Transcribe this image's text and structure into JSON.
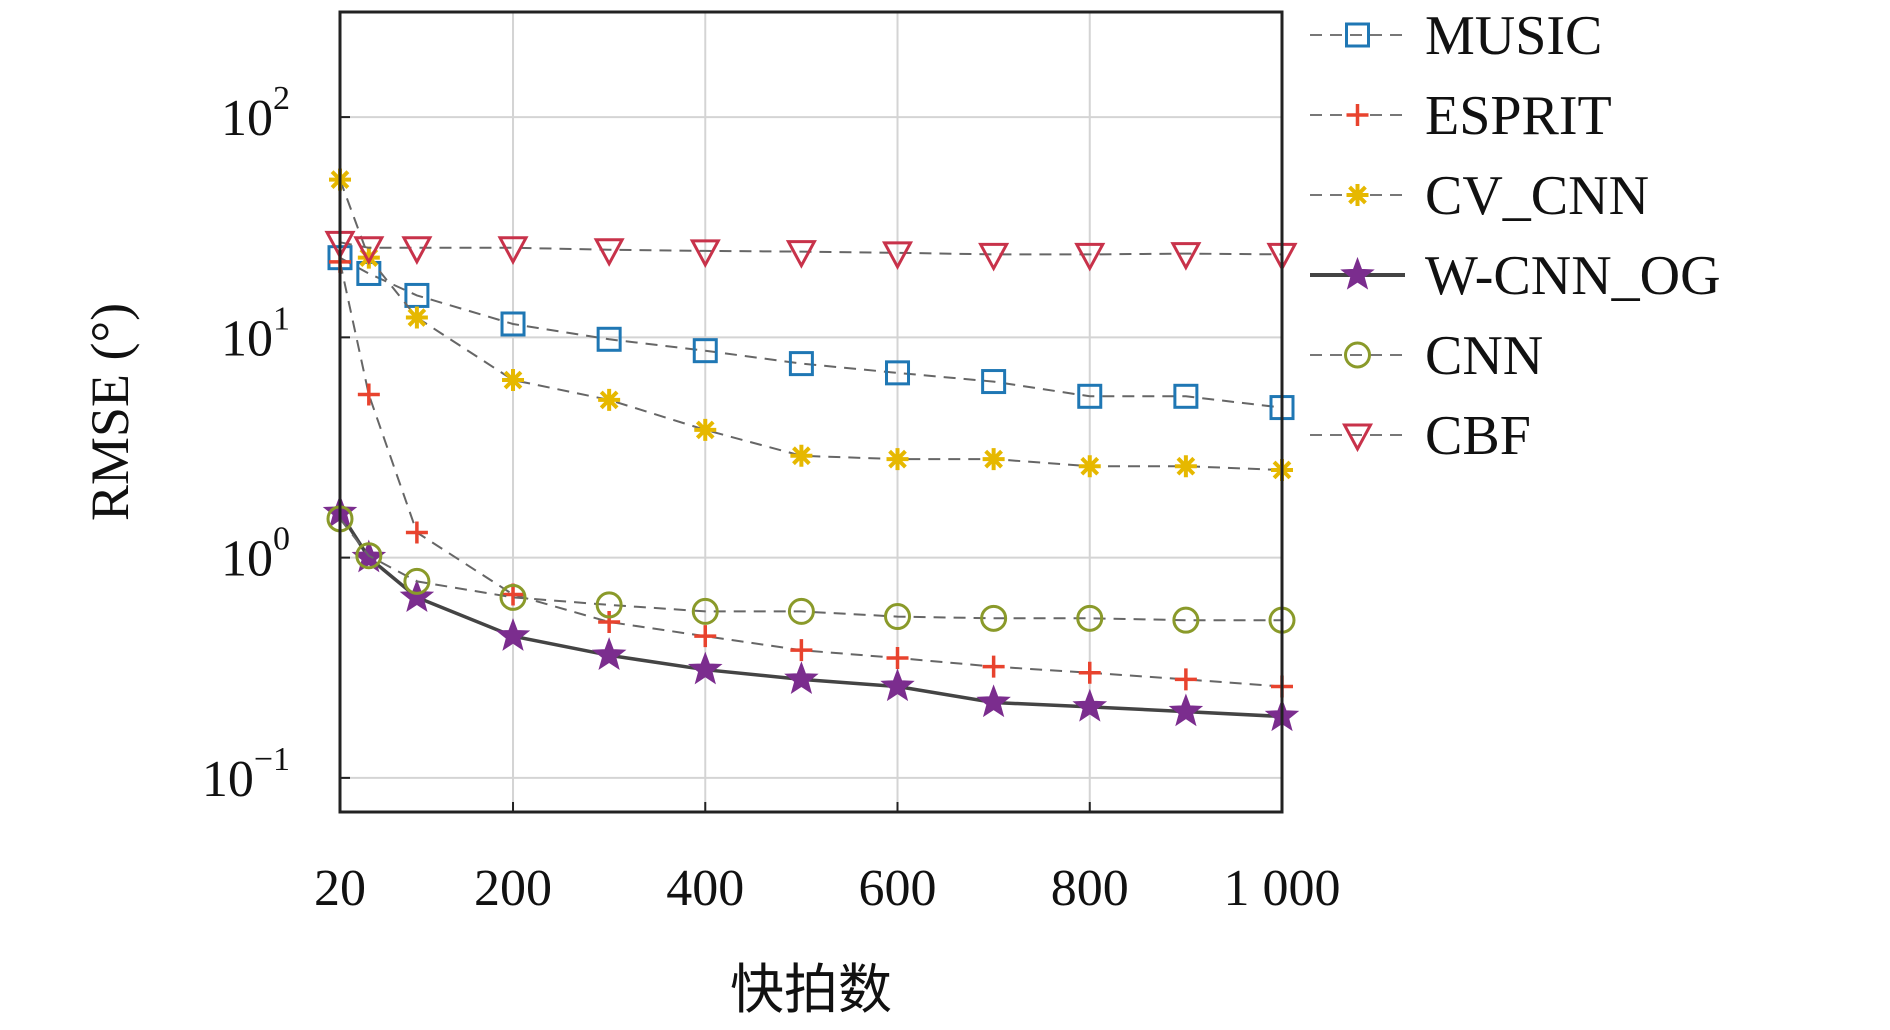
{
  "chart_data": {
    "type": "line",
    "title": "",
    "xlabel": "快拍数",
    "ylabel": "RMSE (°)",
    "x_scale": "linear",
    "y_scale": "log",
    "xlim": [
      20,
      1000
    ],
    "ylim": [
      0.07,
      300
    ],
    "grid": true,
    "legend_position": "outside-right-top",
    "x_ticks": [
      {
        "value": 20,
        "label": "20"
      },
      {
        "value": 200,
        "label": "200"
      },
      {
        "value": 400,
        "label": "400"
      },
      {
        "value": 600,
        "label": "600"
      },
      {
        "value": 800,
        "label": "800"
      },
      {
        "value": 1000,
        "label": "1 000"
      }
    ],
    "y_ticks": [
      {
        "value": 0.1,
        "base": "10",
        "exp": "−1"
      },
      {
        "value": 1,
        "base": "10",
        "exp": "0"
      },
      {
        "value": 10,
        "base": "10",
        "exp": "1"
      },
      {
        "value": 100,
        "base": "10",
        "exp": "2"
      }
    ],
    "x": [
      20,
      50,
      100,
      200,
      300,
      400,
      500,
      600,
      700,
      800,
      900,
      1000
    ],
    "series": [
      {
        "name": "MUSIC",
        "color": "#1f77b4",
        "marker": "square",
        "line": "dashed",
        "values": [
          23,
          19.5,
          15.5,
          11.5,
          9.8,
          8.7,
          7.6,
          6.9,
          6.3,
          5.4,
          5.4,
          4.8
        ]
      },
      {
        "name": "ESPRIT",
        "color": "#e8432e",
        "marker": "plus",
        "line": "dashed",
        "values": [
          22,
          5.5,
          1.3,
          0.68,
          0.51,
          0.44,
          0.38,
          0.35,
          0.32,
          0.3,
          0.28,
          0.26
        ]
      },
      {
        "name": "CV_CNN",
        "color": "#e6b800",
        "marker": "asterisk",
        "line": "dashed",
        "values": [
          52,
          23,
          12.3,
          6.4,
          5.2,
          3.8,
          2.9,
          2.8,
          2.8,
          2.6,
          2.6,
          2.5
        ]
      },
      {
        "name": "W-CNN_OG",
        "color": "#7b2d8e",
        "marker": "star",
        "line": "solid",
        "values": [
          1.6,
          1.0,
          0.66,
          0.44,
          0.36,
          0.31,
          0.28,
          0.26,
          0.22,
          0.21,
          0.2,
          0.19
        ]
      },
      {
        "name": "CNN",
        "color": "#8a9a2a",
        "marker": "circle",
        "line": "dashed",
        "values": [
          1.5,
          1.02,
          0.78,
          0.66,
          0.61,
          0.57,
          0.57,
          0.54,
          0.53,
          0.53,
          0.52,
          0.52
        ]
      },
      {
        "name": "CBF",
        "color": "#c8324a",
        "marker": "triangle-down",
        "line": "dashed",
        "values": [
          27,
          25.5,
          25.5,
          25.5,
          25,
          24.7,
          24.5,
          24.2,
          23.8,
          23.8,
          24,
          23.8
        ]
      }
    ]
  }
}
